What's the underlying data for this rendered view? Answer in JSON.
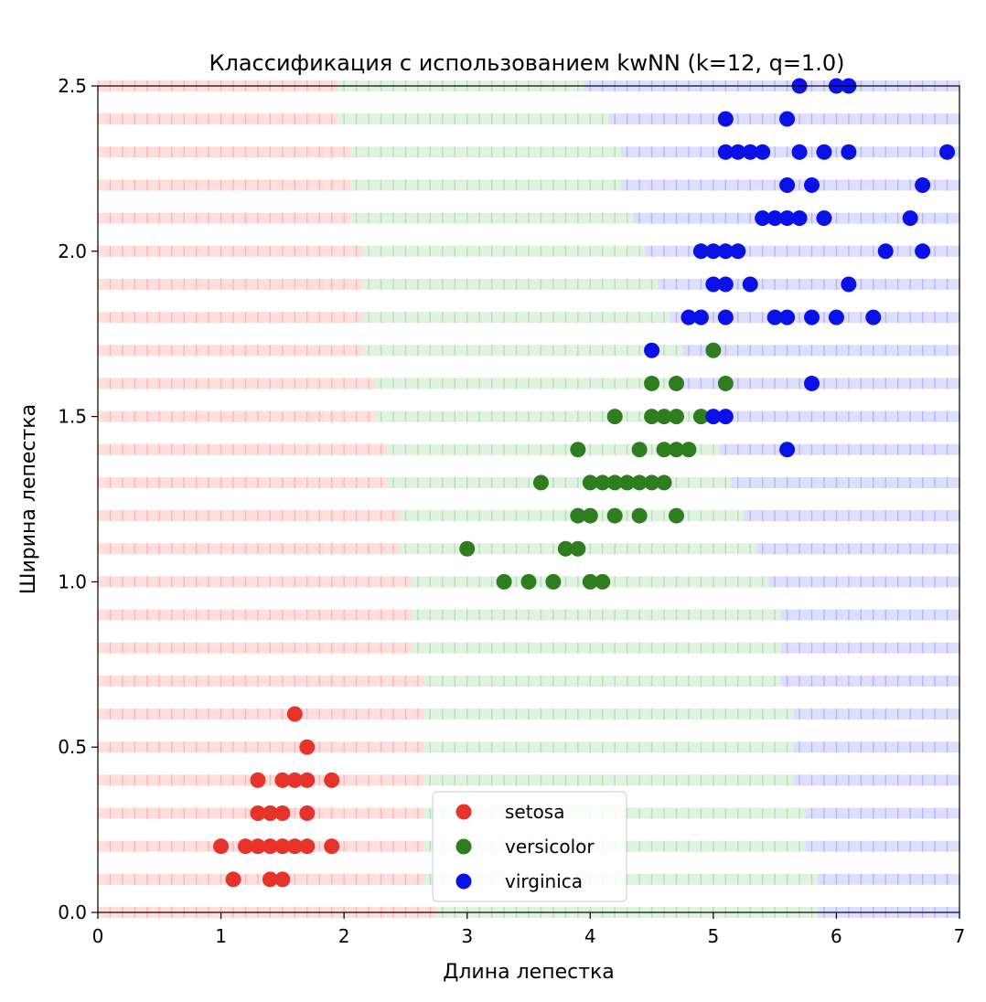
{
  "chart_data": {
    "type": "scatter",
    "title": "Классификация с использованием kwNN (k=12, q=1.0)",
    "xlabel": "Длина лепестка",
    "ylabel": "Ширина лепестка",
    "xlim": [
      0,
      7
    ],
    "ylim": [
      0,
      2.5
    ],
    "xticks": [
      0,
      1,
      2,
      3,
      4,
      5,
      6,
      7
    ],
    "xtick_labels": [
      "0",
      "1",
      "2",
      "3",
      "4",
      "5",
      "6",
      "7"
    ],
    "yticks": [
      0.0,
      0.5,
      1.0,
      1.5,
      2.0,
      2.5
    ],
    "ytick_labels": [
      "0.0",
      "0.5",
      "1.0",
      "1.5",
      "2.0",
      "2.5"
    ],
    "legend_position": "bottom-center",
    "background": {
      "description": "classification map sampled on a grid, shown as faint class-colored markers",
      "x_step": 0.1,
      "y_values": [
        0,
        0.1,
        0.2,
        0.3,
        0.4,
        0.5,
        0.6,
        0.7,
        0.8,
        0.9,
        1.0,
        1.1,
        1.2,
        1.3,
        1.4,
        1.5,
        1.6,
        1.7,
        1.8,
        1.9,
        2.0,
        2.1,
        2.2,
        2.3,
        2.4,
        2.5
      ],
      "setosa_to_versicolor_boundary": [
        2.75,
        2.65,
        2.65,
        2.65,
        2.65,
        2.65,
        2.65,
        2.65,
        2.55,
        2.55,
        2.55,
        2.45,
        2.45,
        2.35,
        2.35,
        2.25,
        2.25,
        2.15,
        2.15,
        2.15,
        2.15,
        2.05,
        2.05,
        2.05,
        1.95,
        1.95
      ],
      "versicolor_to_virginica_boundary": [
        5.85,
        5.85,
        5.75,
        5.75,
        5.65,
        5.65,
        5.65,
        5.55,
        5.55,
        5.55,
        5.45,
        5.35,
        5.25,
        5.15,
        5.05,
        4.85,
        4.75,
        4.75,
        4.65,
        4.55,
        4.45,
        4.35,
        4.25,
        4.25,
        4.15,
        3.95
      ]
    },
    "series": [
      {
        "name": "setosa",
        "color": "#e8332a",
        "x": [
          1.1,
          1.4,
          1.5,
          1.0,
          1.2,
          1.3,
          1.4,
          1.5,
          1.6,
          1.7,
          1.9,
          1.3,
          1.4,
          1.5,
          1.7,
          1.3,
          1.5,
          1.6,
          1.7,
          1.9,
          1.7,
          1.6
        ],
        "y": [
          0.1,
          0.1,
          0.1,
          0.2,
          0.2,
          0.2,
          0.2,
          0.2,
          0.2,
          0.2,
          0.2,
          0.3,
          0.3,
          0.3,
          0.3,
          0.4,
          0.4,
          0.4,
          0.4,
          0.4,
          0.5,
          0.6
        ]
      },
      {
        "name": "versicolor",
        "color": "#2e7d1e",
        "x": [
          3.3,
          3.5,
          3.7,
          4.0,
          4.1,
          3.0,
          3.8,
          3.9,
          3.9,
          4.0,
          4.2,
          4.4,
          4.7,
          3.6,
          4.0,
          4.1,
          4.2,
          4.3,
          4.4,
          4.5,
          4.6,
          3.9,
          4.4,
          4.6,
          4.7,
          4.8,
          4.2,
          4.5,
          4.6,
          4.7,
          4.9,
          4.5,
          4.7,
          5.1,
          5.0
        ],
        "y": [
          1.0,
          1.0,
          1.0,
          1.0,
          1.0,
          1.1,
          1.1,
          1.1,
          1.2,
          1.2,
          1.2,
          1.2,
          1.2,
          1.3,
          1.3,
          1.3,
          1.3,
          1.3,
          1.3,
          1.3,
          1.3,
          1.4,
          1.4,
          1.4,
          1.4,
          1.4,
          1.5,
          1.5,
          1.5,
          1.5,
          1.5,
          1.6,
          1.6,
          1.6,
          1.7
        ]
      },
      {
        "name": "virginica",
        "color": "#0a10e8",
        "x": [
          5.6,
          5.0,
          5.1,
          5.8,
          4.5,
          4.8,
          4.9,
          5.1,
          5.5,
          5.6,
          5.8,
          6.0,
          6.3,
          5.0,
          5.1,
          5.3,
          6.1,
          4.9,
          5.0,
          5.1,
          5.2,
          6.4,
          6.7,
          5.4,
          5.5,
          5.6,
          5.7,
          5.9,
          6.6,
          5.6,
          5.8,
          6.7,
          5.1,
          5.2,
          5.3,
          5.4,
          5.7,
          5.9,
          6.1,
          6.9,
          5.1,
          5.6,
          5.7,
          6.0,
          6.1
        ],
        "y": [
          1.4,
          1.5,
          1.5,
          1.6,
          1.7,
          1.8,
          1.8,
          1.8,
          1.8,
          1.8,
          1.8,
          1.8,
          1.8,
          1.9,
          1.9,
          1.9,
          1.9,
          2.0,
          2.0,
          2.0,
          2.0,
          2.0,
          2.0,
          2.1,
          2.1,
          2.1,
          2.1,
          2.1,
          2.1,
          2.2,
          2.2,
          2.2,
          2.3,
          2.3,
          2.3,
          2.3,
          2.3,
          2.3,
          2.3,
          2.3,
          2.4,
          2.4,
          2.5,
          2.5,
          2.5
        ]
      }
    ]
  }
}
